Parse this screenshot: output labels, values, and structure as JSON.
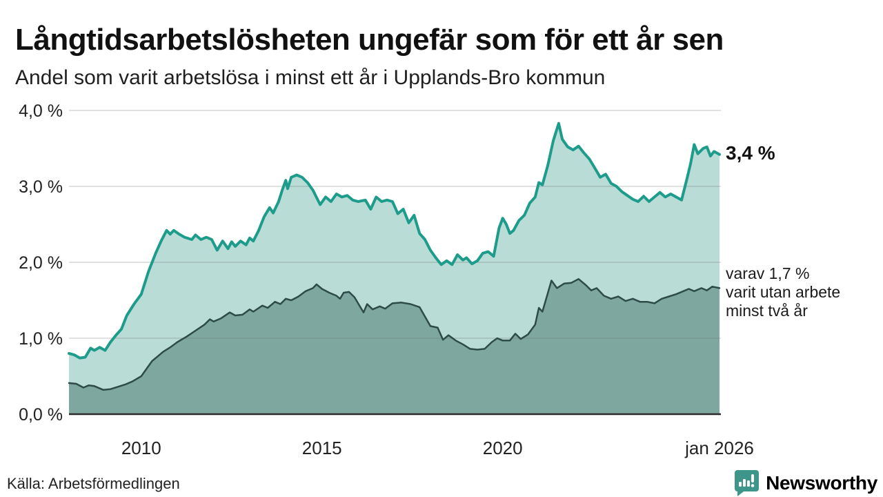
{
  "header": {
    "title": "Långtidsarbetslösheten ungefär som för ett år sen",
    "subtitle": "Andel som varit arbetslösa i minst ett år i Upplands-Bro kommun"
  },
  "annotations": {
    "latest_total": "3,4 %",
    "two_year_lines": [
      "varav 1,7 %",
      "varit utan arbete",
      "minst två år"
    ]
  },
  "footer": {
    "source": "Källa: Arbetsförmedlingen",
    "brand": "Newsworthy"
  },
  "colors": {
    "accent_line": "#1e9c8b",
    "accent_fill": "#b9dcd6",
    "dark_line": "#2d4b47",
    "dark_fill": "#7ea7a0",
    "grid": "#e0e0e0",
    "axis": "#2b2b2b",
    "brand_teal": "#3e968a",
    "text": "#111111"
  },
  "chart_data": {
    "type": "area",
    "title": "Långtidsarbetslösheten ungefär som för ett år sen",
    "subtitle": "Andel som varit arbetslösa i minst ett år i Upplands-Bro kommun",
    "unit": "%",
    "xlim": [
      2008,
      2026
    ],
    "ylim": [
      0,
      4
    ],
    "grid": true,
    "legend_position": "right-annotations",
    "x_ticks": [
      {
        "value": 2010,
        "label": "2010"
      },
      {
        "value": 2015,
        "label": "2015"
      },
      {
        "value": 2020,
        "label": "2020"
      },
      {
        "value": 2026,
        "label": "jan 2026"
      }
    ],
    "y_ticks": [
      {
        "value": 0,
        "label": "0,0 %"
      },
      {
        "value": 1,
        "label": "1,0 %"
      },
      {
        "value": 2,
        "label": "2,0 %"
      },
      {
        "value": 3,
        "label": "3,0 %"
      },
      {
        "value": 4,
        "label": "4,0 %"
      }
    ],
    "series": [
      {
        "name": "Arbetslösa minst ett år",
        "latest_label": "3,4 %",
        "latest_value": 3.4,
        "line_color": "#1e9c8b",
        "fill_color": "#b9dcd6",
        "line_width": 4,
        "points": [
          [
            2008.0,
            0.8
          ],
          [
            2008.15,
            0.78
          ],
          [
            2008.3,
            0.74
          ],
          [
            2008.45,
            0.75
          ],
          [
            2008.6,
            0.87
          ],
          [
            2008.7,
            0.84
          ],
          [
            2008.85,
            0.88
          ],
          [
            2009.0,
            0.84
          ],
          [
            2009.15,
            0.95
          ],
          [
            2009.3,
            1.04
          ],
          [
            2009.45,
            1.12
          ],
          [
            2009.6,
            1.3
          ],
          [
            2009.8,
            1.45
          ],
          [
            2010.0,
            1.58
          ],
          [
            2010.2,
            1.88
          ],
          [
            2010.4,
            2.12
          ],
          [
            2010.55,
            2.28
          ],
          [
            2010.7,
            2.42
          ],
          [
            2010.8,
            2.37
          ],
          [
            2010.9,
            2.42
          ],
          [
            2011.05,
            2.37
          ],
          [
            2011.2,
            2.33
          ],
          [
            2011.4,
            2.3
          ],
          [
            2011.5,
            2.36
          ],
          [
            2011.65,
            2.3
          ],
          [
            2011.8,
            2.33
          ],
          [
            2011.95,
            2.3
          ],
          [
            2012.1,
            2.16
          ],
          [
            2012.25,
            2.28
          ],
          [
            2012.4,
            2.18
          ],
          [
            2012.5,
            2.27
          ],
          [
            2012.6,
            2.21
          ],
          [
            2012.75,
            2.28
          ],
          [
            2012.9,
            2.23
          ],
          [
            2013.0,
            2.32
          ],
          [
            2013.1,
            2.28
          ],
          [
            2013.25,
            2.42
          ],
          [
            2013.4,
            2.6
          ],
          [
            2013.55,
            2.72
          ],
          [
            2013.65,
            2.65
          ],
          [
            2013.8,
            2.8
          ],
          [
            2013.9,
            2.95
          ],
          [
            2014.0,
            3.08
          ],
          [
            2014.05,
            2.97
          ],
          [
            2014.15,
            3.12
          ],
          [
            2014.3,
            3.15
          ],
          [
            2014.45,
            3.12
          ],
          [
            2014.6,
            3.05
          ],
          [
            2014.75,
            2.95
          ],
          [
            2014.95,
            2.76
          ],
          [
            2015.1,
            2.86
          ],
          [
            2015.25,
            2.8
          ],
          [
            2015.4,
            2.9
          ],
          [
            2015.55,
            2.86
          ],
          [
            2015.7,
            2.88
          ],
          [
            2015.85,
            2.82
          ],
          [
            2016.0,
            2.8
          ],
          [
            2016.2,
            2.82
          ],
          [
            2016.35,
            2.7
          ],
          [
            2016.5,
            2.86
          ],
          [
            2016.65,
            2.8
          ],
          [
            2016.8,
            2.82
          ],
          [
            2016.95,
            2.8
          ],
          [
            2017.1,
            2.64
          ],
          [
            2017.25,
            2.7
          ],
          [
            2017.4,
            2.52
          ],
          [
            2017.55,
            2.62
          ],
          [
            2017.7,
            2.38
          ],
          [
            2017.85,
            2.3
          ],
          [
            2018.0,
            2.16
          ],
          [
            2018.15,
            2.06
          ],
          [
            2018.3,
            1.97
          ],
          [
            2018.45,
            2.02
          ],
          [
            2018.6,
            1.97
          ],
          [
            2018.75,
            2.1
          ],
          [
            2018.9,
            2.03
          ],
          [
            2019.0,
            2.06
          ],
          [
            2019.15,
            1.98
          ],
          [
            2019.3,
            2.02
          ],
          [
            2019.45,
            2.12
          ],
          [
            2019.6,
            2.14
          ],
          [
            2019.75,
            2.08
          ],
          [
            2019.9,
            2.45
          ],
          [
            2020.0,
            2.58
          ],
          [
            2020.1,
            2.5
          ],
          [
            2020.2,
            2.38
          ],
          [
            2020.3,
            2.42
          ],
          [
            2020.45,
            2.55
          ],
          [
            2020.6,
            2.62
          ],
          [
            2020.75,
            2.78
          ],
          [
            2020.9,
            2.86
          ],
          [
            2021.0,
            3.05
          ],
          [
            2021.1,
            3.02
          ],
          [
            2021.25,
            3.28
          ],
          [
            2021.4,
            3.6
          ],
          [
            2021.55,
            3.83
          ],
          [
            2021.65,
            3.62
          ],
          [
            2021.8,
            3.52
          ],
          [
            2021.95,
            3.48
          ],
          [
            2022.1,
            3.53
          ],
          [
            2022.25,
            3.44
          ],
          [
            2022.4,
            3.36
          ],
          [
            2022.55,
            3.24
          ],
          [
            2022.7,
            3.12
          ],
          [
            2022.85,
            3.16
          ],
          [
            2023.0,
            3.04
          ],
          [
            2023.15,
            3.0
          ],
          [
            2023.3,
            2.93
          ],
          [
            2023.45,
            2.88
          ],
          [
            2023.6,
            2.83
          ],
          [
            2023.75,
            2.8
          ],
          [
            2023.9,
            2.87
          ],
          [
            2024.05,
            2.8
          ],
          [
            2024.2,
            2.86
          ],
          [
            2024.35,
            2.92
          ],
          [
            2024.5,
            2.86
          ],
          [
            2024.65,
            2.9
          ],
          [
            2024.8,
            2.86
          ],
          [
            2024.95,
            2.82
          ],
          [
            2025.1,
            3.1
          ],
          [
            2025.2,
            3.3
          ],
          [
            2025.3,
            3.55
          ],
          [
            2025.4,
            3.43
          ],
          [
            2025.55,
            3.5
          ],
          [
            2025.65,
            3.52
          ],
          [
            2025.75,
            3.4
          ],
          [
            2025.85,
            3.46
          ],
          [
            2026.0,
            3.42
          ]
        ]
      },
      {
        "name": "Varav arbetslösa minst två år",
        "latest_label": "varav 1,7 %",
        "latest_value": 1.7,
        "line_color": "#2d4b47",
        "fill_color": "#7ea7a0",
        "line_width": 2.5,
        "points": [
          [
            2008.0,
            0.41
          ],
          [
            2008.2,
            0.4
          ],
          [
            2008.4,
            0.35
          ],
          [
            2008.55,
            0.38
          ],
          [
            2008.7,
            0.37
          ],
          [
            2008.95,
            0.32
          ],
          [
            2009.15,
            0.33
          ],
          [
            2009.35,
            0.36
          ],
          [
            2009.55,
            0.39
          ],
          [
            2009.75,
            0.43
          ],
          [
            2010.0,
            0.5
          ],
          [
            2010.15,
            0.6
          ],
          [
            2010.3,
            0.7
          ],
          [
            2010.45,
            0.76
          ],
          [
            2010.6,
            0.82
          ],
          [
            2010.8,
            0.88
          ],
          [
            2011.0,
            0.95
          ],
          [
            2011.25,
            1.02
          ],
          [
            2011.5,
            1.1
          ],
          [
            2011.75,
            1.18
          ],
          [
            2011.9,
            1.25
          ],
          [
            2012.0,
            1.22
          ],
          [
            2012.2,
            1.26
          ],
          [
            2012.45,
            1.34
          ],
          [
            2012.6,
            1.3
          ],
          [
            2012.8,
            1.31
          ],
          [
            2013.0,
            1.38
          ],
          [
            2013.1,
            1.35
          ],
          [
            2013.35,
            1.43
          ],
          [
            2013.5,
            1.4
          ],
          [
            2013.7,
            1.48
          ],
          [
            2013.85,
            1.45
          ],
          [
            2014.0,
            1.52
          ],
          [
            2014.15,
            1.5
          ],
          [
            2014.35,
            1.55
          ],
          [
            2014.55,
            1.62
          ],
          [
            2014.75,
            1.66
          ],
          [
            2014.85,
            1.71
          ],
          [
            2015.0,
            1.65
          ],
          [
            2015.2,
            1.6
          ],
          [
            2015.4,
            1.56
          ],
          [
            2015.5,
            1.52
          ],
          [
            2015.6,
            1.6
          ],
          [
            2015.75,
            1.61
          ],
          [
            2015.9,
            1.54
          ],
          [
            2016.05,
            1.42
          ],
          [
            2016.15,
            1.34
          ],
          [
            2016.25,
            1.45
          ],
          [
            2016.4,
            1.38
          ],
          [
            2016.6,
            1.42
          ],
          [
            2016.75,
            1.39
          ],
          [
            2016.95,
            1.46
          ],
          [
            2017.2,
            1.47
          ],
          [
            2017.45,
            1.45
          ],
          [
            2017.7,
            1.41
          ],
          [
            2018.0,
            1.16
          ],
          [
            2018.2,
            1.14
          ],
          [
            2018.35,
            0.98
          ],
          [
            2018.5,
            1.04
          ],
          [
            2018.7,
            0.97
          ],
          [
            2018.9,
            0.92
          ],
          [
            2019.1,
            0.86
          ],
          [
            2019.3,
            0.85
          ],
          [
            2019.5,
            0.86
          ],
          [
            2019.7,
            0.95
          ],
          [
            2019.85,
            1.0
          ],
          [
            2020.0,
            0.97
          ],
          [
            2020.2,
            0.97
          ],
          [
            2020.35,
            1.06
          ],
          [
            2020.5,
            0.99
          ],
          [
            2020.7,
            1.05
          ],
          [
            2020.9,
            1.18
          ],
          [
            2021.0,
            1.4
          ],
          [
            2021.1,
            1.35
          ],
          [
            2021.35,
            1.76
          ],
          [
            2021.5,
            1.66
          ],
          [
            2021.7,
            1.72
          ],
          [
            2021.9,
            1.73
          ],
          [
            2022.1,
            1.78
          ],
          [
            2022.3,
            1.7
          ],
          [
            2022.45,
            1.63
          ],
          [
            2022.6,
            1.66
          ],
          [
            2022.8,
            1.56
          ],
          [
            2023.0,
            1.52
          ],
          [
            2023.2,
            1.55
          ],
          [
            2023.4,
            1.49
          ],
          [
            2023.6,
            1.52
          ],
          [
            2023.8,
            1.48
          ],
          [
            2024.0,
            1.48
          ],
          [
            2024.2,
            1.46
          ],
          [
            2024.4,
            1.52
          ],
          [
            2024.6,
            1.55
          ],
          [
            2024.8,
            1.58
          ],
          [
            2025.0,
            1.62
          ],
          [
            2025.15,
            1.65
          ],
          [
            2025.3,
            1.62
          ],
          [
            2025.5,
            1.66
          ],
          [
            2025.65,
            1.63
          ],
          [
            2025.8,
            1.68
          ],
          [
            2026.0,
            1.66
          ]
        ]
      }
    ]
  }
}
